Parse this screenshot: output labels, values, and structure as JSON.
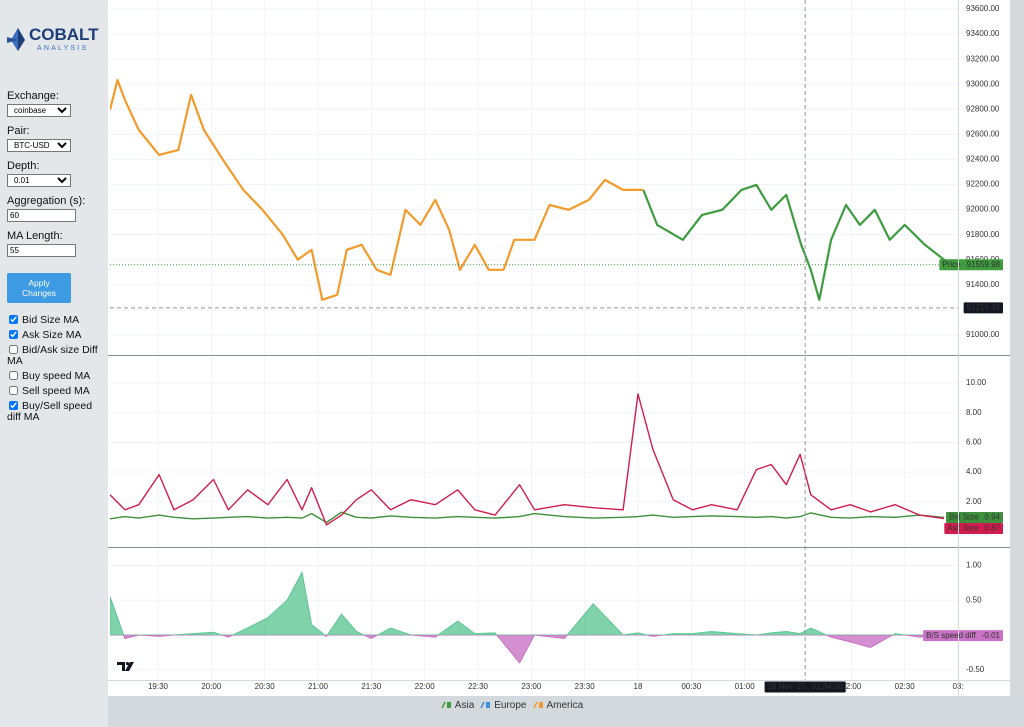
{
  "sidebar": {
    "logo": {
      "title": "COBALT",
      "subtitle": "ANALYSIS"
    },
    "controls": [
      {
        "label": "Exchange:",
        "kind": "select",
        "value": "coinbase"
      },
      {
        "label": "Pair:",
        "kind": "select",
        "value": "BTC-USD"
      },
      {
        "label": "Depth:",
        "kind": "select",
        "value": "0.01"
      },
      {
        "label": "Aggregation (s):",
        "kind": "input",
        "value": "60"
      },
      {
        "label": "MA Length:",
        "kind": "input",
        "value": "55"
      }
    ],
    "button": "Apply Changes",
    "checkboxes": [
      {
        "label": "Bid Size MA",
        "checked": true
      },
      {
        "label": "Ask Size MA",
        "checked": true
      },
      {
        "label": "Bid/Ask size Diff MA",
        "checked": false
      },
      {
        "label": "Buy speed MA",
        "checked": false
      },
      {
        "label": "Sell speed MA",
        "checked": false
      },
      {
        "label": "Buy/Sell speed diff MA",
        "checked": true
      }
    ]
  },
  "chart_data": [
    {
      "type": "line",
      "xlim": [
        19.05,
        27.0
      ],
      "ylim": [
        90840,
        93672
      ],
      "yticks": [
        {
          "value": 91000,
          "label": "91000.00"
        },
        {
          "value": 91200,
          "label": "91200.00"
        },
        {
          "value": 91400,
          "label": "91400.00"
        },
        {
          "value": 91600,
          "label": "91600.00"
        },
        {
          "value": 91800,
          "label": "91800.00"
        },
        {
          "value": 92000,
          "label": "92000.00"
        },
        {
          "value": 92200,
          "label": "92200.00"
        },
        {
          "value": 92400,
          "label": "92400.00"
        },
        {
          "value": 92600,
          "label": "92600.00"
        },
        {
          "value": 92800,
          "label": "92800.00"
        },
        {
          "value": 93000,
          "label": "93000.00"
        },
        {
          "value": 93200,
          "label": "93200.00"
        },
        {
          "value": 93400,
          "label": "93400.00"
        },
        {
          "value": 93600,
          "label": "93600.00"
        }
      ],
      "grid": true,
      "series": [
        {
          "name": "Asia",
          "color": "#3e9b3e",
          "x": [
            24.05,
            24.18,
            24.42,
            24.6,
            24.79,
            24.97,
            25.11,
            25.25,
            25.39,
            25.53,
            25.62,
            25.7,
            25.81,
            25.95,
            26.08,
            26.22,
            26.36,
            26.5,
            26.69,
            26.87,
            26.95
          ],
          "values": [
            92157,
            91878,
            91759,
            91958,
            91998,
            92157,
            92197,
            91998,
            92117,
            91719,
            91520,
            91280,
            91759,
            92037,
            91878,
            91998,
            91759,
            91878,
            91719,
            91600,
            91559.98
          ]
        },
        {
          "name": "Europe",
          "color": "#3d8fd6",
          "x": [],
          "values": []
        },
        {
          "name": "America",
          "color": "#f29b2a",
          "x": [
            19.05,
            19.12,
            19.19,
            19.32,
            19.51,
            19.69,
            19.81,
            19.93,
            20.11,
            20.3,
            20.48,
            20.67,
            20.81,
            20.94,
            21.04,
            21.18,
            21.27,
            21.41,
            21.55,
            21.68,
            21.82,
            21.96,
            22.1,
            22.23,
            22.33,
            22.47,
            22.6,
            22.74,
            22.84,
            23.03,
            23.17,
            23.35,
            23.54,
            23.69,
            23.86,
            24.05
          ],
          "values": [
            92795,
            93034,
            92875,
            92635,
            92436,
            92476,
            92915,
            92635,
            92396,
            92157,
            91998,
            91799,
            91600,
            91679,
            91280,
            91320,
            91679,
            91719,
            91520,
            91480,
            91998,
            91878,
            92077,
            91838,
            91520,
            91719,
            91520,
            91520,
            91759,
            91759,
            92037,
            91998,
            92077,
            92237,
            92157,
            92157
          ]
        }
      ],
      "last_price": {
        "label": "Price",
        "value": 91559.98,
        "color": "#3e9b3e"
      },
      "crosshair": {
        "x": 25.567,
        "y": 91216.34,
        "date_label": "18 Nov '25",
        "time_label": "01:34:00"
      }
    },
    {
      "type": "line",
      "xlim": [
        19.05,
        27.0
      ],
      "ylim": [
        -1.05,
        11.83
      ],
      "yticks": [
        {
          "value": 2,
          "label": "2.00"
        },
        {
          "value": 4,
          "label": "4.00"
        },
        {
          "value": 6,
          "label": "6.00"
        },
        {
          "value": 8,
          "label": "8.00"
        },
        {
          "value": 10,
          "label": "10.00"
        }
      ],
      "grid": true,
      "x": [
        19.05,
        19.19,
        19.32,
        19.51,
        19.65,
        19.83,
        20.02,
        20.16,
        20.34,
        20.53,
        20.71,
        20.85,
        20.94,
        21.08,
        21.22,
        21.36,
        21.5,
        21.68,
        21.87,
        22.1,
        22.31,
        22.47,
        22.66,
        22.89,
        23.03,
        23.31,
        23.58,
        23.86,
        24.0,
        24.14,
        24.33,
        24.51,
        24.69,
        24.93,
        25.11,
        25.25,
        25.39,
        25.52,
        25.62,
        25.81,
        25.99,
        26.18,
        26.41,
        26.64,
        26.87
      ],
      "series": [
        {
          "name": "Bid Size",
          "color": "#3e8f3e",
          "values": [
            0.85,
            1.0,
            0.9,
            1.1,
            0.95,
            0.85,
            0.9,
            0.95,
            1.0,
            0.9,
            0.95,
            0.9,
            1.2,
            0.6,
            1.3,
            0.95,
            0.9,
            1.05,
            0.95,
            0.9,
            1.0,
            0.95,
            0.9,
            1.0,
            1.2,
            1.0,
            0.9,
            0.95,
            1.0,
            1.1,
            0.95,
            1.0,
            1.05,
            1.0,
            0.95,
            1.0,
            0.9,
            1.0,
            1.25,
            0.95,
            0.9,
            1.0,
            0.95,
            1.1,
            0.94
          ]
        },
        {
          "name": "Ask Size",
          "color": "#d21c4d",
          "values": [
            2.47,
            1.46,
            1.8,
            3.83,
            1.46,
            2.14,
            3.5,
            1.46,
            2.81,
            1.8,
            3.5,
            1.46,
            2.95,
            0.44,
            1.1,
            2.14,
            2.81,
            1.46,
            2.14,
            1.8,
            2.81,
            1.46,
            1.1,
            3.15,
            1.46,
            1.8,
            1.6,
            1.46,
            9.27,
            5.54,
            2.14,
            1.46,
            1.8,
            1.46,
            4.17,
            4.51,
            3.15,
            5.2,
            2.47,
            1.46,
            1.8,
            1.32,
            1.8,
            1.1,
            0.87
          ]
        }
      ]
    },
    {
      "type": "area",
      "xlim": [
        19.05,
        27.0
      ],
      "ylim": [
        -0.647,
        1.25
      ],
      "yticks": [
        {
          "value": -0.5,
          "label": "-0.50"
        },
        {
          "value": 0.5,
          "label": "0.50"
        },
        {
          "value": 1,
          "label": "1.00"
        }
      ],
      "grid": true,
      "xticks": [
        {
          "value": 19.5,
          "label": "19:30"
        },
        {
          "value": 20,
          "label": "20:00"
        },
        {
          "value": 20.5,
          "label": "20:30"
        },
        {
          "value": 21,
          "label": "21:00"
        },
        {
          "value": 21.5,
          "label": "21:30"
        },
        {
          "value": 22,
          "label": "22:00"
        },
        {
          "value": 22.5,
          "label": "22:30"
        },
        {
          "value": 23,
          "label": "23:00"
        },
        {
          "value": 23.5,
          "label": "23:30"
        },
        {
          "value": 24,
          "label": "18"
        },
        {
          "value": 24.5,
          "label": "00:30"
        },
        {
          "value": 25,
          "label": "01:00"
        },
        {
          "value": 26,
          "label": "02:00"
        },
        {
          "value": 26.5,
          "label": "02:30"
        },
        {
          "value": 27,
          "label": "03:"
        }
      ],
      "x": [
        19.05,
        19.19,
        19.32,
        19.51,
        19.65,
        19.83,
        20.02,
        20.16,
        20.34,
        20.53,
        20.71,
        20.85,
        20.94,
        21.08,
        21.22,
        21.36,
        21.5,
        21.68,
        21.87,
        22.1,
        22.31,
        22.47,
        22.66,
        22.89,
        23.03,
        23.31,
        23.58,
        23.86,
        24.0,
        24.14,
        24.33,
        24.51,
        24.69,
        24.93,
        25.11,
        25.25,
        25.39,
        25.52,
        25.62,
        25.81,
        25.99,
        26.18,
        26.41,
        26.64,
        26.87
      ],
      "series": [
        {
          "name": "B/S speed diff",
          "color": "#5fc795",
          "negative_color": "#c873c3",
          "values": [
            0.55,
            -0.05,
            0.0,
            -0.02,
            0.0,
            0.02,
            0.04,
            -0.03,
            0.1,
            0.25,
            0.5,
            0.9,
            0.15,
            -0.02,
            0.3,
            0.05,
            -0.05,
            0.1,
            0.0,
            -0.03,
            0.2,
            0.02,
            0.03,
            -0.4,
            0.0,
            -0.05,
            0.45,
            0.0,
            0.03,
            -0.02,
            0.02,
            0.02,
            0.05,
            0.02,
            0.0,
            0.03,
            0.05,
            0.02,
            0.1,
            -0.03,
            -0.1,
            -0.18,
            0.02,
            -0.03,
            -0.01
          ]
        }
      ]
    }
  ]
}
